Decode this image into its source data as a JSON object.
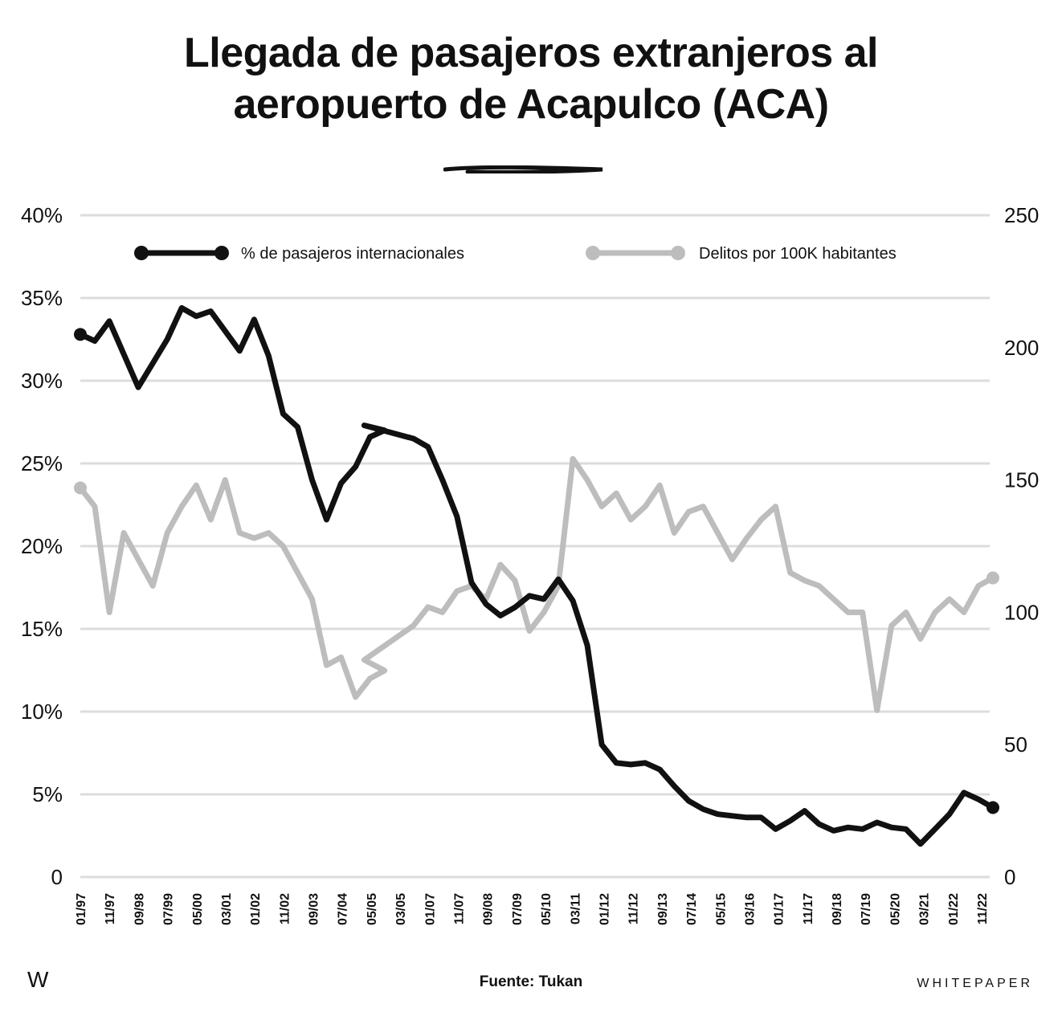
{
  "title_lines": [
    "Llegada de pasajeros extranjeros al",
    "aeropuerto de Acapulco (ACA)"
  ],
  "footer": {
    "logo": "W",
    "source": "Fuente: Tukan",
    "brand": "WHITEPAPER"
  },
  "colors": {
    "passengers": "#111111",
    "crimes": "#bdbdbd",
    "grid": "#dcdcdc"
  },
  "chart_data": {
    "type": "line",
    "title": "Llegada de pasajeros extranjeros al aeropuerto de Acapulco (ACA)",
    "legend": {
      "position": "top",
      "entries": [
        "% de pasajeros internacionales",
        "Delitos por 100K habitantes"
      ]
    },
    "grid": true,
    "x_ticks": [
      "01/97",
      "11/97",
      "09/98",
      "07/99",
      "05/00",
      "03/01",
      "01/02",
      "11/02",
      "09/03",
      "07/04",
      "05/05",
      "03/05",
      "01/07",
      "11/07",
      "09/08",
      "07/09",
      "05/10",
      "03/11",
      "01/12",
      "11/12",
      "09/13",
      "07/14",
      "05/15",
      "03/16",
      "01/17",
      "11/17",
      "09/18",
      "07/19",
      "05/20",
      "03/21",
      "01/22",
      "11/22"
    ],
    "y_left": {
      "ticks": [
        "0",
        "5%",
        "10%",
        "15%",
        "20%",
        "25%",
        "30%",
        "35%",
        "40%"
      ],
      "range": [
        0,
        40
      ],
      "unit": "%"
    },
    "y_right": {
      "ticks": [
        "0",
        "50",
        "100",
        "150",
        "200",
        "250"
      ],
      "range": [
        0,
        250
      ]
    },
    "series": [
      {
        "name": "% de pasajeros internacionales",
        "axis": "left",
        "x": [
          "01/97",
          "06/97",
          "11/97",
          "09/98",
          "07/99",
          "12/99",
          "05/00",
          "10/00",
          "03/01",
          "08/01",
          "01/02",
          "06/02",
          "11/02",
          "04/03",
          "09/03",
          "02/04",
          "07/04",
          "12/04",
          "05/05",
          "10/05",
          "03/05",
          "08/06",
          "01/07",
          "06/07",
          "11/07",
          "04/08",
          "09/08",
          "02/09",
          "07/09",
          "12/09",
          "05/10",
          "10/10",
          "03/11",
          "08/11",
          "01/12",
          "06/12",
          "11/12",
          "04/13",
          "09/13",
          "02/14",
          "07/14",
          "12/14",
          "05/15",
          "10/15",
          "03/16",
          "08/16",
          "01/17",
          "06/17",
          "11/17",
          "04/18",
          "09/18",
          "02/19",
          "07/19",
          "12/19",
          "05/20",
          "10/20",
          "03/21",
          "08/21",
          "01/22",
          "06/22",
          "11/22",
          "04/23"
        ],
        "values": [
          32.8,
          32.4,
          33.6,
          29.6,
          32.5,
          34.4,
          33.9,
          34.2,
          33.0,
          31.8,
          33.7,
          31.5,
          28.0,
          27.2,
          24.0,
          21.6,
          23.8,
          24.8,
          26.6,
          27.0,
          27.3,
          26.5,
          26.0,
          24.0,
          21.8,
          17.8,
          16.5,
          15.8,
          16.3,
          17.0,
          16.8,
          18.0,
          16.7,
          14.0,
          8.0,
          6.9,
          6.8,
          6.9,
          6.5,
          5.5,
          4.6,
          4.1,
          3.8,
          3.7,
          3.6,
          3.6,
          2.9,
          3.4,
          4.0,
          3.2,
          2.8,
          3.0,
          2.9,
          3.3,
          3.0,
          2.9,
          2.0,
          2.9,
          3.8,
          5.1,
          4.7,
          4.2
        ]
      },
      {
        "name": "Delitos por 100K habitantes",
        "axis": "right",
        "x": [
          "01/97",
          "06/97",
          "11/97",
          "04/98",
          "09/98",
          "02/99",
          "07/99",
          "12/99",
          "05/00",
          "10/00",
          "03/01",
          "08/01",
          "01/02",
          "06/02",
          "11/02",
          "04/03",
          "09/03",
          "02/04",
          "07/04",
          "12/04",
          "05/05",
          "10/05",
          "03/05",
          "08/06",
          "01/07",
          "06/07",
          "11/07",
          "04/08",
          "09/08",
          "02/09",
          "07/09",
          "12/09",
          "05/10",
          "10/10",
          "03/11",
          "08/11",
          "01/12",
          "06/12",
          "11/12",
          "04/13",
          "09/13",
          "02/14",
          "07/14",
          "12/14",
          "05/15",
          "10/15",
          "03/16",
          "08/16",
          "01/17",
          "06/17",
          "11/17",
          "04/18",
          "09/18",
          "02/19",
          "07/19",
          "12/19",
          "05/20",
          "10/20",
          "03/21",
          "08/21",
          "01/22",
          "06/22",
          "11/22",
          "04/23"
        ],
        "values": [
          147,
          140,
          100,
          130,
          120,
          110,
          130,
          140,
          148,
          135,
          150,
          130,
          128,
          130,
          125,
          115,
          105,
          80,
          83,
          68,
          75,
          78,
          82,
          95,
          102,
          100,
          108,
          110,
          105,
          118,
          112,
          93,
          100,
          110,
          158,
          150,
          140,
          145,
          135,
          140,
          148,
          130,
          138,
          140,
          130,
          120,
          128,
          135,
          140,
          115,
          112,
          110,
          105,
          100,
          100,
          63,
          95,
          100,
          90,
          100,
          105,
          100,
          110,
          113
        ]
      }
    ]
  }
}
